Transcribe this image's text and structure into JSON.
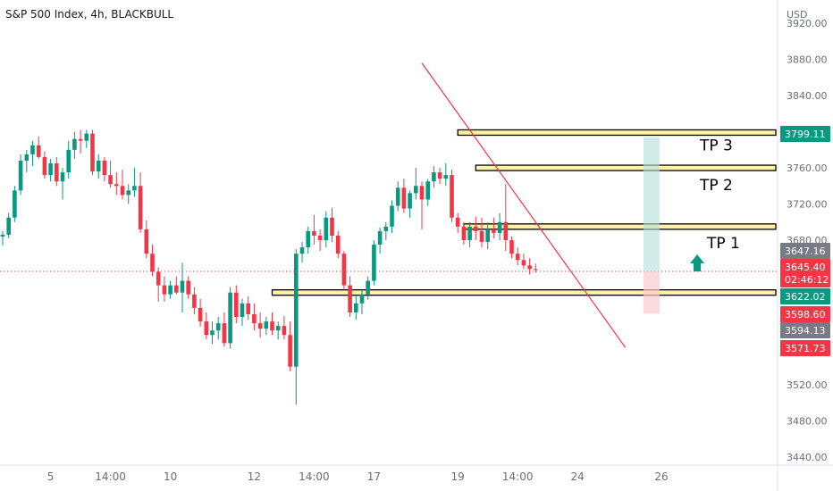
{
  "header": {
    "title": "S&P 500 Index, 4h, BLACKBULL"
  },
  "price_scale": {
    "currency": "USD",
    "ticks": [
      "3920.00",
      "3880.00",
      "3840.00",
      "3800.00",
      "3760.00",
      "3720.00",
      "3680.00",
      "3640.00",
      "3600.00",
      "3560.00",
      "3520.00",
      "3480.00",
      "3440.00"
    ],
    "ylim": [
      3431,
      3931
    ]
  },
  "time_scale": {
    "labels": [
      {
        "text": "5",
        "bar": 8
      },
      {
        "text": "14:00",
        "bar": 18
      },
      {
        "text": "10",
        "bar": 28
      },
      {
        "text": "12",
        "bar": 42
      },
      {
        "text": "14:00",
        "bar": 52
      },
      {
        "text": "17",
        "bar": 62
      },
      {
        "text": "19",
        "bar": 76
      },
      {
        "text": "14:00",
        "bar": 86
      },
      {
        "text": "24",
        "bar": 96
      },
      {
        "text": "26",
        "bar": 110
      }
    ]
  },
  "price_labels": [
    {
      "text": "3799.11",
      "bg": "#089981",
      "fg": "#ffffff"
    },
    {
      "text": "3647.16",
      "bg": "#787b86",
      "fg": "#ffffff"
    },
    {
      "text": "3645.40",
      "bg": "#f23645",
      "fg": "#ffffff",
      "sub": "02:46:12"
    },
    {
      "text": "3622.02",
      "bg": "#089981",
      "fg": "#ffffff"
    },
    {
      "text": "3598.60",
      "bg": "#f23645",
      "fg": "#ffffff"
    },
    {
      "text": "3594.13",
      "bg": "#787b86",
      "fg": "#ffffff"
    },
    {
      "text": "3571.73",
      "bg": "#f23645",
      "fg": "#ffffff"
    }
  ],
  "annotations": {
    "tp1": "TP 1",
    "tp2": "TP 2",
    "tp3": "TP 3"
  },
  "colors": {
    "up": "#089981",
    "down": "#f23645",
    "level": "#fff2a8",
    "trend": "#f23645",
    "target_zone": "#b2dfdb",
    "stop_zone": "#fccbcd",
    "arrow": "#089981"
  },
  "chart_data": {
    "type": "candlestick",
    "title": "S&P 500 Index, 4h, BLACKBULL",
    "ohlc": [
      [
        3684,
        3690,
        3674,
        3686
      ],
      [
        3686,
        3710,
        3682,
        3705
      ],
      [
        3705,
        3740,
        3700,
        3735
      ],
      [
        3735,
        3775,
        3730,
        3768
      ],
      [
        3768,
        3780,
        3755,
        3775
      ],
      [
        3775,
        3790,
        3762,
        3785
      ],
      [
        3785,
        3795,
        3770,
        3772
      ],
      [
        3772,
        3778,
        3748,
        3752
      ],
      [
        3752,
        3770,
        3745,
        3765
      ],
      [
        3765,
        3772,
        3740,
        3745
      ],
      [
        3745,
        3760,
        3725,
        3755
      ],
      [
        3755,
        3790,
        3748,
        3780
      ],
      [
        3780,
        3800,
        3770,
        3792
      ],
      [
        3792,
        3802,
        3776,
        3790
      ],
      [
        3790,
        3802,
        3782,
        3798
      ],
      [
        3798,
        3802,
        3752,
        3756
      ],
      [
        3756,
        3775,
        3748,
        3768
      ],
      [
        3768,
        3772,
        3745,
        3752
      ],
      [
        3752,
        3768,
        3738,
        3742
      ],
      [
        3742,
        3755,
        3730,
        3740
      ],
      [
        3740,
        3758,
        3725,
        3730
      ],
      [
        3730,
        3742,
        3720,
        3735
      ],
      [
        3735,
        3760,
        3728,
        3740
      ],
      [
        3740,
        3755,
        3688,
        3692
      ],
      [
        3692,
        3702,
        3660,
        3665
      ],
      [
        3665,
        3675,
        3640,
        3645
      ],
      [
        3645,
        3650,
        3612,
        3630
      ],
      [
        3630,
        3640,
        3612,
        3620
      ],
      [
        3620,
        3635,
        3615,
        3630
      ],
      [
        3630,
        3640,
        3620,
        3622
      ],
      [
        3622,
        3655,
        3600,
        3635
      ],
      [
        3635,
        3640,
        3615,
        3620
      ],
      [
        3620,
        3628,
        3598,
        3605
      ],
      [
        3605,
        3615,
        3584,
        3590
      ],
      [
        3590,
        3600,
        3570,
        3575
      ],
      [
        3575,
        3590,
        3565,
        3580
      ],
      [
        3580,
        3595,
        3570,
        3588
      ],
      [
        3588,
        3600,
        3562,
        3566
      ],
      [
        3566,
        3628,
        3560,
        3622
      ],
      [
        3622,
        3630,
        3588,
        3595
      ],
      [
        3595,
        3615,
        3585,
        3610
      ],
      [
        3610,
        3618,
        3592,
        3598
      ],
      [
        3598,
        3610,
        3580,
        3588
      ],
      [
        3588,
        3600,
        3572,
        3582
      ],
      [
        3582,
        3595,
        3575,
        3590
      ],
      [
        3590,
        3600,
        3575,
        3580
      ],
      [
        3580,
        3590,
        3570,
        3585
      ],
      [
        3585,
        3596,
        3570,
        3575
      ],
      [
        3575,
        3590,
        3535,
        3540
      ],
      [
        3540,
        3670,
        3498,
        3665
      ],
      [
        3665,
        3678,
        3655,
        3672
      ],
      [
        3672,
        3695,
        3665,
        3690
      ],
      [
        3690,
        3708,
        3675,
        3685
      ],
      [
        3685,
        3692,
        3668,
        3680
      ],
      [
        3680,
        3712,
        3672,
        3705
      ],
      [
        3705,
        3716,
        3678,
        3685
      ],
      [
        3685,
        3690,
        3660,
        3665
      ],
      [
        3665,
        3668,
        3625,
        3630
      ],
      [
        3630,
        3640,
        3595,
        3600
      ],
      [
        3600,
        3618,
        3592,
        3610
      ],
      [
        3610,
        3625,
        3598,
        3620
      ],
      [
        3620,
        3640,
        3614,
        3635
      ],
      [
        3635,
        3680,
        3630,
        3675
      ],
      [
        3675,
        3694,
        3665,
        3690
      ],
      [
        3690,
        3700,
        3680,
        3695
      ],
      [
        3695,
        3724,
        3688,
        3718
      ],
      [
        3718,
        3745,
        3712,
        3738
      ],
      [
        3738,
        3748,
        3710,
        3715
      ],
      [
        3715,
        3735,
        3705,
        3732
      ],
      [
        3732,
        3760,
        3725,
        3740
      ],
      [
        3740,
        3745,
        3692,
        3725
      ],
      [
        3725,
        3748,
        3718,
        3745
      ],
      [
        3745,
        3762,
        3738,
        3755
      ],
      [
        3755,
        3760,
        3742,
        3748
      ],
      [
        3748,
        3765,
        3740,
        3752
      ],
      [
        3752,
        3758,
        3700,
        3705
      ],
      [
        3705,
        3710,
        3688,
        3695
      ],
      [
        3695,
        3700,
        3675,
        3680
      ],
      [
        3680,
        3700,
        3672,
        3695
      ],
      [
        3695,
        3706,
        3680,
        3690
      ],
      [
        3690,
        3705,
        3672,
        3678
      ],
      [
        3678,
        3700,
        3670,
        3692
      ],
      [
        3692,
        3705,
        3682,
        3688
      ],
      [
        3688,
        3710,
        3680,
        3700
      ],
      [
        3700,
        3742,
        3668,
        3680
      ],
      [
        3680,
        3684,
        3660,
        3665
      ],
      [
        3665,
        3672,
        3652,
        3658
      ],
      [
        3658,
        3665,
        3648,
        3652
      ],
      [
        3652,
        3660,
        3642,
        3648
      ],
      [
        3648,
        3654,
        3644,
        3647
      ]
    ],
    "levels": [
      3799.11,
      3760,
      3695,
      3622.02
    ],
    "level_labels": [
      "TP 3",
      "TP 2",
      "TP 1",
      ""
    ],
    "trendline": [
      {
        "bar": 70,
        "price": 3876
      },
      {
        "bar": 104,
        "price": 3561
      }
    ],
    "position": {
      "entry": 3645.4,
      "target": 3794,
      "stop": 3598.6
    },
    "ylabel": "USD",
    "ylim": [
      3431,
      3931
    ]
  }
}
